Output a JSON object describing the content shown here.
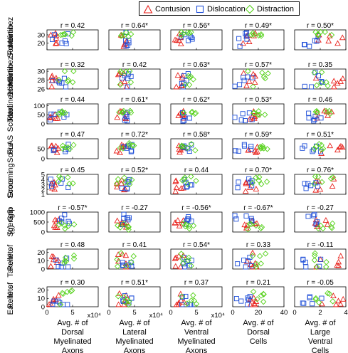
{
  "chart_data": {
    "type": "scatter",
    "legend": [
      {
        "name": "Contusion",
        "color": "#e8211b",
        "marker": "triangle"
      },
      {
        "name": "Dislocation",
        "color": "#1f4fd8",
        "marker": "square"
      },
      {
        "name": "Distraction",
        "color": "#55d11a",
        "marker": "diamond"
      }
    ],
    "legend_position": "top-right",
    "grid": false,
    "columns": [
      {
        "xlabel": [
          "Avg. # of",
          "Dorsal",
          "Myelinated",
          "Axons"
        ],
        "xlim": [
          0,
          10
        ],
        "xticks": [
          "0",
          "5"
        ],
        "xtick_values": [
          0,
          5
        ],
        "exponent": "x10⁴",
        "ranges": {
          "contusion": [
            0.4,
            2.4
          ],
          "dislocation": [
            0.6,
            4.6
          ],
          "distraction": [
            2.2,
            5.4
          ]
        }
      },
      {
        "xlabel": [
          "Avg. # of",
          "Lateral",
          "Myelinated",
          "Axons"
        ],
        "xlim": [
          0,
          10
        ],
        "xticks": [
          "0",
          "5"
        ],
        "xtick_values": [
          0,
          5
        ],
        "exponent": "x10⁴",
        "ranges": {
          "contusion": [
            1.5,
            3.5
          ],
          "dislocation": [
            2.5,
            4.5
          ],
          "distraction": [
            1.5,
            5.0
          ]
        }
      },
      {
        "xlabel": [
          "Avg. # of",
          "Ventral",
          "Myelinated",
          "Axons"
        ],
        "xlim": [
          0,
          10
        ],
        "xticks": [
          "0",
          "5"
        ],
        "xtick_values": [
          0,
          5
        ],
        "exponent": "x10⁴",
        "ranges": {
          "contusion": [
            0.8,
            2.6
          ],
          "dislocation": [
            2.0,
            4.2
          ],
          "distraction": [
            1.8,
            5.0
          ]
        }
      },
      {
        "xlabel": [
          "Avg. # of",
          "Dorsal",
          "Cells"
        ],
        "xlim": [
          0,
          40
        ],
        "xticks": [
          "0",
          "20",
          "40"
        ],
        "xtick_values": [
          0,
          20,
          40
        ],
        "exponent": "",
        "ranges": {
          "contusion": [
            8,
            20
          ],
          "dislocation": [
            1,
            16
          ],
          "distraction": [
            10,
            28
          ]
        }
      },
      {
        "xlabel": [
          "Avg. # of",
          "Large",
          "Ventral",
          "Cells"
        ],
        "xlim": [
          0,
          4
        ],
        "xticks": [
          "0",
          "2",
          "4"
        ],
        "xtick_values": [
          0,
          2,
          4
        ],
        "exponent": "",
        "ranges": {
          "contusion": [
            1.6,
            3.8
          ],
          "dislocation": [
            0.6,
            2.2
          ],
          "distraction": [
            1.5,
            3.0
          ]
        }
      }
    ],
    "rows": [
      {
        "ylabel": [
          "Martinez",
          "Forelimb",
          "Score"
        ],
        "ylim": [
          12,
          36
        ],
        "yticks": [
          "20",
          "30"
        ],
        "ytick_values": [
          20,
          30
        ],
        "r": [
          "r = 0.42",
          "r = 0.64*",
          "r = 0.56*",
          "r = 0.49*",
          "r = 0.50*"
        ]
      },
      {
        "ylabel": [
          "Martinez",
          "Hindlimb",
          "Score"
        ],
        "ylim": [
          26,
          30.5
        ],
        "yticks": [
          "26",
          "28",
          "30"
        ],
        "ytick_values": [
          26,
          28,
          30
        ],
        "r": [
          "r = 0.32",
          "r = 0.42",
          "r = 0.63*",
          "r = 0.57*",
          "r = 0.35"
        ]
      },
      {
        "ylabel": [
          "Martinez",
          "Total",
          "Score"
        ],
        "ylim": [
          0,
          110
        ],
        "yticks": [
          "0",
          "50",
          "100"
        ],
        "ytick_values": [
          0,
          50,
          100
        ],
        "r": [
          "r = 0.44",
          "r = 0.61*",
          "r = 0.62*",
          "r = 0.53*",
          "r = 0.46"
        ]
      },
      {
        "ylabel": [
          "FLAS",
          "Score"
        ],
        "ylim": [
          0,
          100
        ],
        "yticks": [
          "0",
          "50"
        ],
        "ytick_values": [
          0,
          50
        ],
        "r": [
          "r = 0.47",
          "r = 0.72*",
          "r = 0.58*",
          "r = 0.59*",
          "r = 0.51*"
        ]
      },
      {
        "ylabel": [
          "Grooming",
          "Score"
        ],
        "ylim": [
          1,
          5
        ],
        "yticks": [
          "1",
          "2",
          "3",
          "4",
          "5"
        ],
        "ytick_values": [
          1,
          2,
          3,
          4,
          5
        ],
        "r": [
          "r = 0.45",
          "r = 0.52*",
          "r = 0.44",
          "r = 0.70*",
          "r = 0.76*"
        ]
      },
      {
        "ylabel": [
          "Grip",
          "Strength",
          "(g)"
        ],
        "ylim": [
          0,
          1000
        ],
        "yticks": [
          "0",
          "500",
          "1000"
        ],
        "ytick_values": [
          0,
          500,
          1000
        ],
        "r": [
          "r = -0.57*",
          "r = -0.27",
          "r = -0.56*",
          "r = -0.67*",
          "r = -0.27"
        ]
      },
      {
        "ylabel": [
          "# of",
          "Pellets",
          "Taken"
        ],
        "ylim": [
          0,
          24
        ],
        "yticks": [
          "0",
          "10",
          "20"
        ],
        "ytick_values": [
          0,
          10,
          20
        ],
        "r": [
          "r = 0.48",
          "r = 0.41",
          "r = 0.54*",
          "r = 0.33",
          "r = -0.11"
        ]
      },
      {
        "ylabel": [
          "# of",
          "Pellets",
          "Eaten"
        ],
        "ylim": [
          0,
          24
        ],
        "yticks": [
          "0",
          "10",
          "20"
        ],
        "ytick_values": [
          0,
          10,
          20
        ],
        "r": [
          "r = 0.30",
          "r = 0.51*",
          "r = 0.37",
          "r = 0.21",
          "r = -0.05"
        ]
      }
    ],
    "group_y_ranges": [
      {
        "contusion": [
          14,
          32
        ],
        "dislocation": [
          16,
          34
        ],
        "distraction": [
          28,
          34
        ]
      },
      {
        "contusion": [
          26,
          29.6
        ],
        "dislocation": [
          26,
          29.8
        ],
        "distraction": [
          26.5,
          30.3
        ]
      },
      {
        "contusion": [
          25,
          72
        ],
        "dislocation": [
          15,
          70
        ],
        "distraction": [
          50,
          75
        ]
      },
      {
        "contusion": [
          25,
          70
        ],
        "dislocation": [
          35,
          72
        ],
        "distraction": [
          40,
          80
        ]
      },
      {
        "contusion": [
          1.5,
          4.3
        ],
        "dislocation": [
          2.0,
          4.2
        ],
        "distraction": [
          3.0,
          4.8
        ]
      },
      {
        "contusion": [
          200,
          650
        ],
        "dislocation": [
          350,
          900
        ],
        "distraction": [
          100,
          450
        ]
      },
      {
        "contusion": [
          1,
          20
        ],
        "dislocation": [
          0,
          15
        ],
        "distraction": [
          2,
          20
        ]
      },
      {
        "contusion": [
          0,
          16
        ],
        "dislocation": [
          0,
          14
        ],
        "distraction": [
          0,
          20
        ]
      }
    ]
  }
}
